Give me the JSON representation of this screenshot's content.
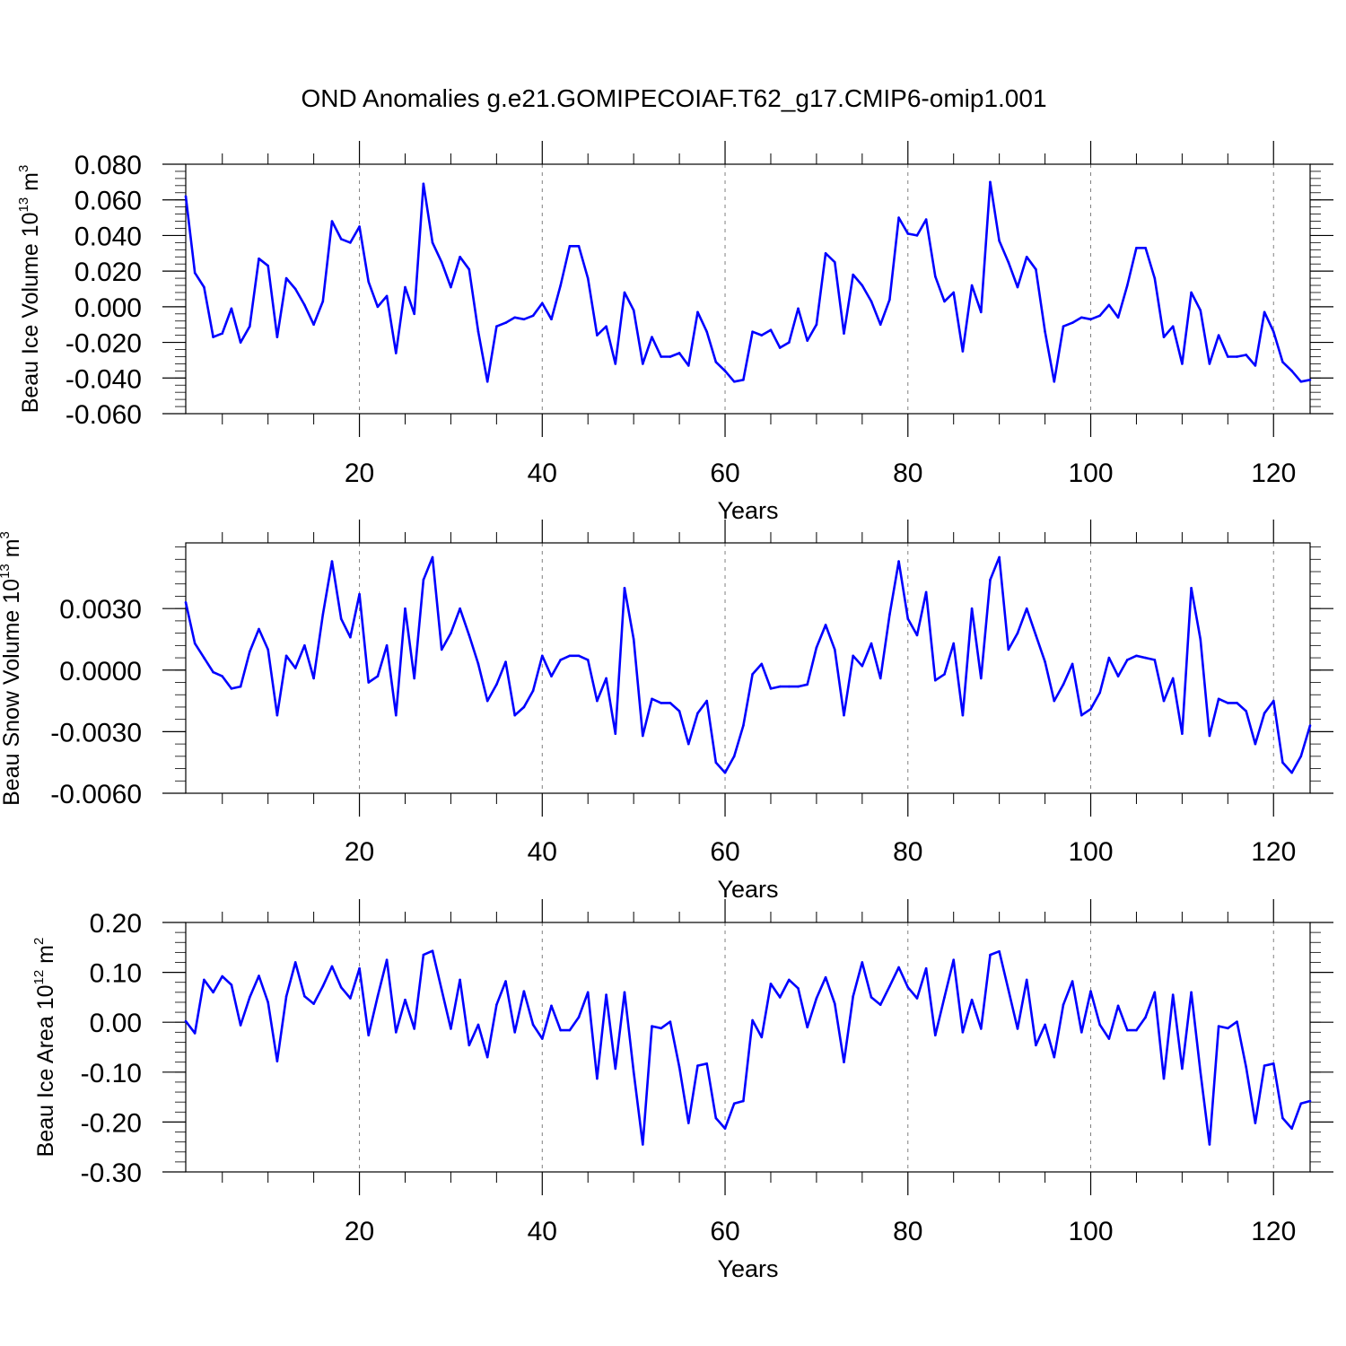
{
  "title": "OND Anomalies g.e21.GOMIPECOIAF.T62_g17.CMIP6-omip1.001",
  "colors": {
    "line": "#0000ff",
    "frame": "#000000",
    "grid": "#808080"
  },
  "chart_data": [
    {
      "type": "line",
      "title": "OND Anomalies g.e21.GOMIPECOIAF.T62_g17.CMIP6-omip1.001",
      "xlabel": "Years",
      "ylabel": "Beau Ice Volume 10",
      "ylabel_exp": "13",
      "ylabel_unit": " m",
      "ylabel_unit_exp": "3",
      "xlim": [
        1,
        124
      ],
      "ylim": [
        -0.06,
        0.08
      ],
      "xticks": [
        20,
        40,
        60,
        80,
        100,
        120
      ],
      "xtick_labels": [
        "20",
        "40",
        "60",
        "80",
        "100",
        "120"
      ],
      "yticks": [
        -0.06,
        -0.04,
        -0.02,
        0.0,
        0.02,
        0.04,
        0.06,
        0.08
      ],
      "ytick_labels": [
        "-0.060",
        "-0.040",
        "-0.020",
        "0.000",
        "0.020",
        "0.040",
        "0.060",
        "0.080"
      ],
      "grid": "vertical dashed at major x ticks",
      "series": [
        {
          "name": "Beau Ice Volume",
          "x_start": 1,
          "values": [
            0.062,
            0.019,
            0.011,
            -0.017,
            -0.015,
            -0.001,
            -0.02,
            -0.011,
            0.027,
            0.023,
            -0.017,
            0.016,
            0.01,
            0.001,
            -0.01,
            0.003,
            0.048,
            0.038,
            0.036,
            0.045,
            0.014,
            0.0,
            0.006,
            -0.026,
            0.011,
            -0.004,
            0.069,
            0.036,
            0.025,
            0.011,
            0.028,
            0.021,
            -0.014,
            -0.042,
            -0.011,
            -0.009,
            -0.006,
            -0.007,
            -0.005,
            0.002,
            -0.007,
            0.012,
            0.034,
            0.034,
            0.016,
            -0.016,
            -0.011,
            -0.032,
            0.008,
            -0.002,
            -0.032,
            -0.017,
            -0.028,
            -0.028,
            -0.026,
            -0.033,
            -0.003,
            -0.014,
            -0.031,
            -0.036,
            -0.042,
            -0.041,
            -0.014,
            -0.016,
            -0.013,
            -0.023,
            -0.02,
            -0.001,
            -0.019,
            -0.01,
            0.03,
            0.025,
            -0.015,
            0.018,
            0.012,
            0.003,
            -0.01,
            0.004,
            0.05,
            0.041,
            0.04,
            0.049,
            0.017,
            0.003,
            0.008,
            -0.025,
            0.012,
            -0.003,
            0.07,
            0.037,
            0.025,
            0.011,
            0.028,
            0.021,
            -0.014,
            -0.042,
            -0.011,
            -0.009,
            -0.006,
            -0.007,
            -0.005,
            0.001,
            -0.006,
            0.012,
            0.033,
            0.033,
            0.016,
            -0.017,
            -0.011,
            -0.032,
            0.008,
            -0.002,
            -0.032,
            -0.016,
            -0.028,
            -0.028,
            -0.027,
            -0.033,
            -0.003,
            -0.014,
            -0.031,
            -0.036,
            -0.042,
            -0.041
          ]
        }
      ]
    },
    {
      "type": "line",
      "xlabel": "Years",
      "ylabel": "Beau Snow Volume 10",
      "ylabel_exp": "13",
      "ylabel_unit": " m",
      "ylabel_unit_exp": "3",
      "xlim": [
        1,
        124
      ],
      "ylim": [
        -0.006,
        0.0062
      ],
      "xticks": [
        20,
        40,
        60,
        80,
        100,
        120
      ],
      "xtick_labels": [
        "20",
        "40",
        "60",
        "80",
        "100",
        "120"
      ],
      "yticks": [
        -0.006,
        -0.003,
        0.0,
        0.003
      ],
      "ytick_labels": [
        "-0.0060",
        "-0.0030",
        "0.0000",
        "0.0030"
      ],
      "grid": "vertical dashed at major x ticks",
      "series": [
        {
          "name": "Beau Snow Volume",
          "x_start": 1,
          "values": [
            0.0033,
            0.0013,
            0.0006,
            -0.0001,
            -0.0003,
            -0.0009,
            -0.0008,
            0.0009,
            0.002,
            0.001,
            -0.0022,
            0.0007,
            0.0001,
            0.0012,
            -0.0004,
            0.0027,
            0.0053,
            0.0025,
            0.0016,
            0.0037,
            -0.0006,
            -0.0003,
            0.0012,
            -0.0022,
            0.003,
            -0.0004,
            0.0044,
            0.0055,
            0.001,
            0.0018,
            0.003,
            0.0017,
            0.0003,
            -0.0015,
            -0.0007,
            0.0004,
            -0.0022,
            -0.0018,
            -0.001,
            0.0007,
            -0.0003,
            0.0005,
            0.0007,
            0.0007,
            0.0005,
            -0.0015,
            -0.0004,
            -0.0031,
            0.004,
            0.0015,
            -0.0032,
            -0.0014,
            -0.0016,
            -0.0016,
            -0.002,
            -0.0036,
            -0.0021,
            -0.0015,
            -0.0045,
            -0.005,
            -0.0042,
            -0.0027,
            -0.0002,
            0.0003,
            -0.0009,
            -0.0008,
            -0.0008,
            -0.0008,
            -0.0007,
            0.0011,
            0.0022,
            0.001,
            -0.0022,
            0.0007,
            0.0002,
            0.0013,
            -0.0004,
            0.0027,
            0.0053,
            0.0025,
            0.0017,
            0.0038,
            -0.0005,
            -0.0002,
            0.0013,
            -0.0022,
            0.003,
            -0.0004,
            0.0044,
            0.0055,
            0.001,
            0.0018,
            0.003,
            0.0017,
            0.0004,
            -0.0015,
            -0.0007,
            0.0003,
            -0.0022,
            -0.0019,
            -0.0011,
            0.0006,
            -0.0003,
            0.0005,
            0.0007,
            0.0006,
            0.0005,
            -0.0015,
            -0.0004,
            -0.0031,
            0.004,
            0.0015,
            -0.0032,
            -0.0014,
            -0.0016,
            -0.0016,
            -0.002,
            -0.0036,
            -0.0021,
            -0.0015,
            -0.0045,
            -0.005,
            -0.0042,
            -0.0027
          ]
        }
      ]
    },
    {
      "type": "line",
      "xlabel": "Years",
      "ylabel": "Beau Ice Area 10",
      "ylabel_exp": "12",
      "ylabel_unit": " m",
      "ylabel_unit_exp": "2",
      "xlim": [
        1,
        124
      ],
      "ylim": [
        -0.3,
        0.2
      ],
      "xticks": [
        20,
        40,
        60,
        80,
        100,
        120
      ],
      "xtick_labels": [
        "20",
        "40",
        "60",
        "80",
        "100",
        "120"
      ],
      "yticks": [
        -0.3,
        -0.2,
        -0.1,
        0.0,
        0.1,
        0.2
      ],
      "ytick_labels": [
        "-0.30",
        "-0.20",
        "-0.10",
        "0.00",
        "0.10",
        "0.20"
      ],
      "grid": "vertical dashed at major x ticks",
      "series": [
        {
          "name": "Beau Ice Area",
          "x_start": 1,
          "values": [
            0.002,
            -0.022,
            0.085,
            0.06,
            0.092,
            0.075,
            -0.006,
            0.05,
            0.093,
            0.04,
            -0.078,
            0.052,
            0.12,
            0.052,
            0.037,
            0.072,
            0.112,
            0.07,
            0.048,
            0.108,
            -0.026,
            0.052,
            0.125,
            -0.02,
            0.045,
            -0.013,
            0.135,
            0.143,
            0.065,
            -0.013,
            0.085,
            -0.046,
            -0.005,
            -0.07,
            0.035,
            0.082,
            -0.02,
            0.062,
            -0.005,
            -0.033,
            0.033,
            -0.016,
            -0.016,
            0.01,
            0.06,
            -0.113,
            0.055,
            -0.093,
            0.06,
            -0.1,
            -0.245,
            -0.008,
            -0.012,
            0.001,
            -0.09,
            -0.202,
            -0.087,
            -0.083,
            -0.192,
            -0.213,
            -0.163,
            -0.158,
            0.004,
            -0.03,
            0.077,
            0.05,
            0.085,
            0.068,
            -0.01,
            0.048,
            0.09,
            0.037,
            -0.08,
            0.052,
            0.12,
            0.05,
            0.035,
            0.072,
            0.11,
            0.07,
            0.048,
            0.108,
            -0.026,
            0.05,
            0.125,
            -0.02,
            0.045,
            -0.013,
            0.135,
            0.142,
            0.065,
            -0.013,
            0.085,
            -0.046,
            -0.005,
            -0.07,
            0.035,
            0.082,
            -0.02,
            0.062,
            -0.005,
            -0.033,
            0.033,
            -0.016,
            -0.016,
            0.01,
            0.06,
            -0.113,
            0.055,
            -0.093,
            0.06,
            -0.1,
            -0.245,
            -0.008,
            -0.012,
            0.001,
            -0.09,
            -0.202,
            -0.087,
            -0.083,
            -0.192,
            -0.213,
            -0.163,
            -0.158
          ]
        }
      ]
    }
  ]
}
